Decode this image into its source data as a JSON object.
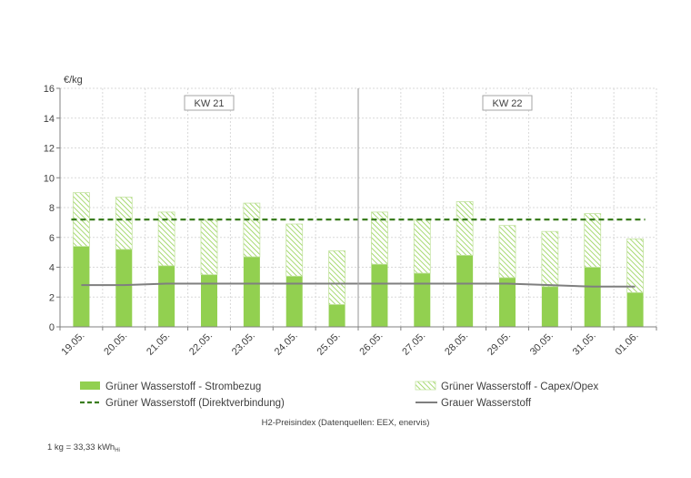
{
  "chart_data": {
    "type": "bar",
    "ylabel": "€/kg",
    "ylim": [
      0,
      16
    ],
    "yticks": [
      "0",
      "2",
      "4",
      "6",
      "8",
      "10",
      "12",
      "14",
      "16"
    ],
    "grid": true,
    "categories": [
      "19.05.",
      "20.05.",
      "21.05.",
      "22.05.",
      "23.05.",
      "24.05.",
      "25.05.",
      "26.05.",
      "27.05.",
      "28.05.",
      "29.05.",
      "30.05.",
      "31.05.",
      "01.06."
    ],
    "week_labels": [
      {
        "label": "KW 21",
        "from": 0,
        "to": 6
      },
      {
        "label": "KW 22",
        "from": 7,
        "to": 13
      }
    ],
    "series": [
      {
        "name": "Grüner Wasserstoff - Strombezug",
        "kind": "bar-solid",
        "color": "#92d050",
        "values": [
          5.4,
          5.2,
          4.1,
          3.5,
          4.7,
          3.4,
          1.5,
          4.2,
          3.6,
          4.8,
          3.3,
          2.7,
          4.0,
          2.3
        ]
      },
      {
        "name": "Grüner Wasserstoff - Capex/Opex",
        "kind": "bar-hatched-stacked",
        "color": "#92d050",
        "values": [
          3.6,
          3.5,
          3.6,
          3.7,
          3.6,
          3.5,
          3.6,
          3.5,
          3.6,
          3.6,
          3.5,
          3.7,
          3.6,
          3.6
        ]
      },
      {
        "name": "Grüner Wasserstoff (Direktverbindung)",
        "kind": "line-dashed",
        "color": "#3a7d1f",
        "values": [
          7.2,
          7.2,
          7.2,
          7.2,
          7.2,
          7.2,
          7.2,
          7.2,
          7.2,
          7.2,
          7.2,
          7.2,
          7.2,
          7.2
        ]
      },
      {
        "name": "Grauer Wasserstoff",
        "kind": "line",
        "color": "#7f7f7f",
        "values": [
          2.8,
          2.8,
          2.9,
          2.9,
          2.9,
          2.9,
          2.9,
          2.9,
          2.9,
          2.9,
          2.9,
          2.8,
          2.7,
          2.7
        ]
      }
    ],
    "legend_position": "bottom"
  },
  "source": "H2-Preisindex (Datenquellen: EEX, enervis)",
  "note": {
    "text": "1 kg = 33,33 kWh",
    "sub": "Hi"
  }
}
